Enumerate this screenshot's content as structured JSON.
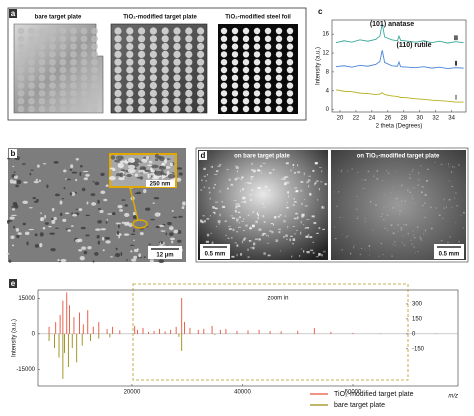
{
  "panels": {
    "a": {
      "label": "a",
      "titles": [
        "bare target plate",
        "TiO₂-modified target plate",
        "TiO₂-modified steel foil"
      ]
    },
    "b": {
      "label": "b",
      "scale_bars": [
        "250 nm",
        "12 µm"
      ]
    },
    "d": {
      "label": "d",
      "titles": [
        "on bare target plate",
        "on TiO₂-modified target plate"
      ],
      "scale_bars": [
        "0.5 mm",
        "0.5 mm"
      ]
    }
  },
  "chart_data": [
    {
      "type": "line",
      "panel_label": "c",
      "x_label": "2 theta (Degrees)",
      "y_label": "Intensity (a.u.)",
      "annotations": [
        "(101) anatase",
        "(110) rutile"
      ],
      "x": [
        19.5,
        20.5,
        21.5,
        22.5,
        23.5,
        24.5,
        25,
        25.3,
        25.6,
        26.5,
        27.2,
        27.4,
        27.6,
        28.5,
        29.5,
        30.5,
        31.5,
        32.5,
        33.5,
        34.5,
        35.5
      ],
      "series": [
        {
          "name": "Ⅲ",
          "color": "#3aa89a",
          "values": [
            14.2,
            14.6,
            14.3,
            14.8,
            14.5,
            14.9,
            15.6,
            18.2,
            15.4,
            14.8,
            14.6,
            15.6,
            14.7,
            14.5,
            14.3,
            14.6,
            14.2,
            14.5,
            14.1,
            14.4,
            14.2
          ]
        },
        {
          "name": "Ⅱ",
          "color": "#4a86d8",
          "values": [
            9.1,
            9.3,
            9.0,
            9.4,
            9.2,
            9.6,
            10.2,
            12.6,
            10.0,
            9.3,
            9.2,
            10.1,
            9.1,
            9.0,
            8.9,
            9.1,
            8.8,
            9.0,
            8.7,
            8.9,
            8.8
          ]
        },
        {
          "name": "Ⅰ",
          "color": "#b5b020",
          "values": [
            4.2,
            3.9,
            3.8,
            3.5,
            3.4,
            3.2,
            3.3,
            3.6,
            3.2,
            2.9,
            2.8,
            2.7,
            2.6,
            2.5,
            2.3,
            2.2,
            2.0,
            1.9,
            1.8,
            1.6,
            1.6
          ]
        }
      ],
      "xlim": [
        19,
        35.8
      ],
      "xticks": [
        20,
        22,
        24,
        26,
        28,
        30,
        32,
        34
      ],
      "ylim": [
        -0.5,
        19
      ],
      "yticks": [
        0,
        4,
        8,
        12,
        16
      ]
    },
    {
      "type": "stem",
      "panel_label": "e",
      "x_label": "m/z",
      "y_label": "Intensity (a.u.)",
      "annotation": "zoom in",
      "legend": "lower right",
      "series": [
        {
          "name": "TiO₂-modified target plate",
          "color": "#e8513a",
          "x": [
            5000,
            6200,
            7000,
            7500,
            8200,
            8700,
            9500,
            10500,
            11200,
            12000,
            13000,
            14000,
            15500,
            16500,
            17800
          ],
          "values": [
            3000,
            5000,
            8000,
            14000,
            17500,
            12000,
            7000,
            9000,
            4000,
            10000,
            3000,
            5000,
            2000,
            3000,
            1500
          ]
        },
        {
          "name": "bare target plate",
          "color": "#9a8a10",
          "x": [
            5000,
            6000,
            6800,
            7500,
            7800,
            8500,
            9200,
            10000,
            11000,
            12500,
            14000,
            16000
          ],
          "values": [
            -3000,
            -6000,
            -10000,
            -19000,
            -8000,
            -14000,
            -6000,
            -12000,
            -5000,
            -3000,
            -2000,
            -1500
          ]
        },
        {
          "color": "#e8513a",
          "axis": "y2",
          "x": [
            20500,
            21000,
            22000,
            23000,
            24000,
            25000,
            26000,
            27000,
            28000,
            29000,
            29500,
            30500,
            32000,
            33000,
            34500,
            36000,
            37000,
            39000,
            41000,
            43000,
            45000,
            47000,
            50000,
            53000,
            56000,
            60000,
            65000,
            70000,
            75000
          ],
          "values": [
            80,
            40,
            60,
            20,
            30,
            50,
            25,
            40,
            70,
            360,
            120,
            60,
            40,
            50,
            80,
            40,
            50,
            30,
            35,
            40,
            30,
            25,
            30,
            60,
            20,
            10,
            5,
            5,
            5
          ]
        },
        {
          "color": "#9a8a10",
          "axis": "y2",
          "x": [
            28500,
            29000,
            35000
          ],
          "values": [
            -30,
            -170,
            -10
          ]
        }
      ],
      "xlim": [
        3000,
        79000
      ],
      "xticks": [
        20000,
        40000,
        60000
      ],
      "ylim": [
        -22000,
        18500
      ],
      "yticks": [
        15000,
        0,
        -15000
      ],
      "y2lim": [
        -523,
        440
      ],
      "y2ticks": [
        300,
        150,
        0,
        -150
      ]
    }
  ]
}
